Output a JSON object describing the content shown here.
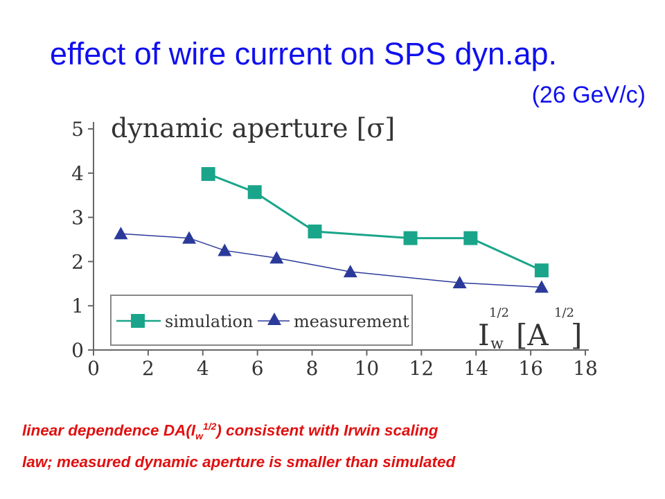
{
  "slide": {
    "title": "effect of wire current on SPS dyn.ap.",
    "subtitle": "(26 GeV/c)",
    "caption": {
      "part1": "linear dependence DA(I",
      "sub": "w",
      "sup": "1/2",
      "part2": ") consistent with Irwin scaling",
      "line2": "law; measured dynamic aperture is smaller than simulated"
    }
  },
  "chart_data": {
    "type": "line",
    "title": "dynamic aperture [σ]",
    "xlabel": "I_w^1/2 [A^1/2]",
    "xlim": [
      0,
      18
    ],
    "ylim": [
      0,
      5
    ],
    "xticks": [
      "0",
      "2",
      "4",
      "6",
      "8",
      "10",
      "12",
      "14",
      "16",
      "18"
    ],
    "yticks": [
      "0",
      "1",
      "2",
      "3",
      "4",
      "5"
    ],
    "grid": false,
    "legend_position": "bottom-left",
    "series": [
      {
        "name": "simulation",
        "marker": "square",
        "color": "#1aa58a",
        "points": [
          [
            4.2,
            3.98
          ],
          [
            5.9,
            3.57
          ],
          [
            8.1,
            2.68
          ],
          [
            11.6,
            2.53
          ],
          [
            13.8,
            2.53
          ],
          [
            16.4,
            1.8
          ]
        ]
      },
      {
        "name": "measurement",
        "marker": "triangle",
        "color": "#2b3a9a",
        "points": [
          [
            1.0,
            2.63
          ],
          [
            3.5,
            2.53
          ],
          [
            4.8,
            2.25
          ],
          [
            6.7,
            2.08
          ],
          [
            9.4,
            1.77
          ],
          [
            13.4,
            1.52
          ],
          [
            16.4,
            1.42
          ]
        ]
      }
    ]
  }
}
